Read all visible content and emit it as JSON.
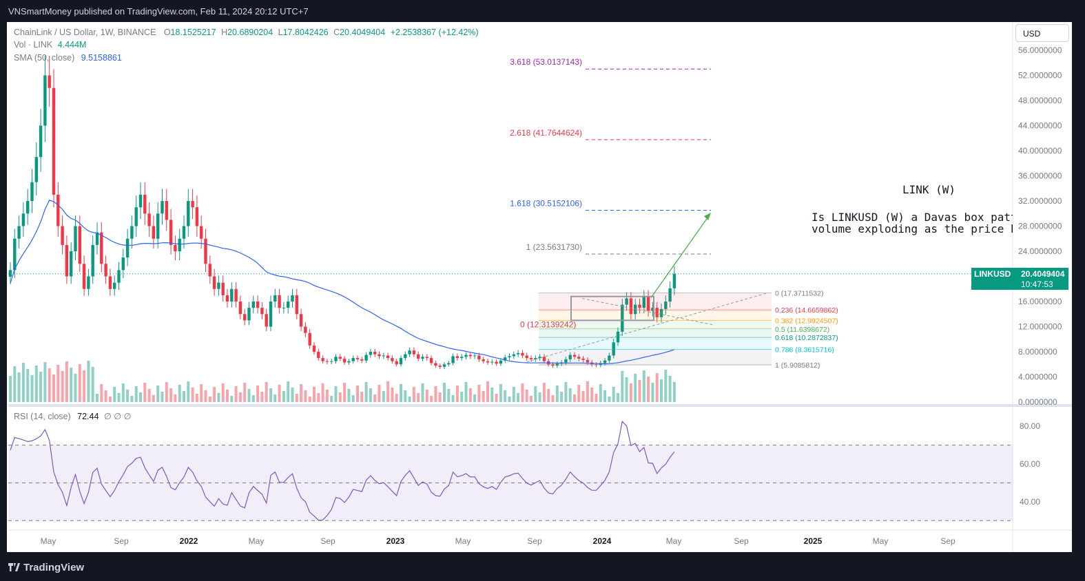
{
  "header": {
    "published": "VNSmartMoney published on TradingView.com, Feb 11, 2024 20:12 UTC+7"
  },
  "footer": {
    "brand": "TradingView"
  },
  "legend": {
    "title": "ChainLink / US Dollar, 1W, BINANCE",
    "open_label": "O",
    "open": "18.1525217",
    "high_label": "H",
    "high": "20.6890204",
    "low_label": "L",
    "low": "17.8042426",
    "close_label": "C",
    "close": "20.4049404",
    "change": "+2.2538367 (+12.42%)",
    "vol_label": "Vol · LINK",
    "vol": "4.444M",
    "sma_label": "SMA (50, close)",
    "sma": "9.5158861"
  },
  "rsi_legend": {
    "label": "RSI (14, close)",
    "value": "72.44",
    "extra": "∅ ∅ ∅"
  },
  "currency_button": "USD",
  "price_tag": {
    "symbol": "LINKUSD",
    "price": "20.4049404",
    "countdown": "10:47:53"
  },
  "colors": {
    "up": "#089981",
    "down": "#f23645",
    "sma": "#2962ff",
    "rsi": "#7e57c2",
    "bg": "#131722"
  },
  "annotations": {
    "title": "LINK (W)",
    "line1": "Is LINKUSD (W) a Davas box pattern",
    "line2": "volume exploding as the price breal"
  },
  "chart_data": [
    {
      "type": "candlestick",
      "symbol": "LINKUSD",
      "interval": "1W",
      "y_axis_labels": [
        "56.0000000",
        "52.0000000",
        "48.0000000",
        "44.0000000",
        "40.0000000",
        "36.0000000",
        "32.0000000",
        "28.0000000",
        "24.0000000",
        "20.0000000",
        "16.0000000",
        "12.0000000",
        "8.0000000",
        "4.0000000",
        "0.0000000"
      ],
      "ylim": [
        0,
        57.5
      ],
      "x_axis_labels": [
        "May",
        "Sep",
        "2022",
        "May",
        "Sep",
        "2023",
        "May",
        "Sep",
        "2024",
        "May",
        "Sep",
        "2025",
        "May",
        "Sep"
      ],
      "approx_weekly_closes_from": "2021-03",
      "approx_weekly_closes": [
        21,
        26,
        28,
        30,
        32,
        35,
        39,
        44,
        52,
        50,
        33,
        28,
        25,
        20,
        24,
        28,
        22,
        18,
        20,
        25,
        27,
        22,
        20,
        18,
        19,
        21,
        23,
        26,
        28,
        31,
        33,
        30,
        28,
        26,
        30,
        32,
        29,
        25,
        24,
        26,
        28,
        32,
        31,
        28,
        26,
        22,
        20,
        18,
        19,
        17,
        16,
        18,
        16,
        14,
        13,
        15,
        16,
        15,
        14,
        12,
        16,
        17,
        15,
        15,
        16,
        17,
        14,
        12,
        11,
        9,
        8,
        7,
        6.5,
        6.4,
        6.5,
        7.2,
        6.9,
        6.3,
        6.5,
        7.0,
        6.8,
        6.6,
        7.5,
        8.0,
        7.6,
        7.3,
        7.4,
        7.0,
        6.5,
        6.0,
        7.0,
        7.6,
        8.2,
        7.6,
        6.9,
        7.2,
        7.0,
        6.2,
        5.8,
        5.6,
        6.0,
        6.2,
        7.3,
        7.0,
        7.2,
        7.5,
        7.3,
        7.4,
        6.8,
        6.5,
        6.3,
        6.4,
        6.1,
        6.6,
        7.1,
        7.3,
        7.6,
        7.8,
        7.4,
        7.0,
        6.8,
        7.0,
        7.2,
        6.5,
        6.0,
        5.8,
        6.1,
        6.3,
        6.8,
        7.5,
        7.2,
        6.9,
        6.7,
        6.3,
        6.0,
        5.9,
        6.2,
        6.6,
        7.4,
        9.5,
        11.2,
        15.5,
        16.5,
        14.0,
        15.5,
        15.0,
        16.8,
        14.5,
        15.0,
        13.5,
        14.8,
        16.0,
        18.1,
        20.4
      ],
      "sma50_label": "SMA (50, close)",
      "last_price": 20.4049404
    },
    {
      "type": "fibonacci",
      "levels": [
        {
          "ratio": "3.618",
          "price": "53.0137143",
          "color": "#9c27b0"
        },
        {
          "ratio": "2.618",
          "price": "41.7644624",
          "color": "#f23645"
        },
        {
          "ratio": "1.618",
          "price": "30.5152106",
          "color": "#2962ff"
        },
        {
          "ratio": "1",
          "price": "23.5631730",
          "color": "#787b86"
        },
        {
          "ratio": "0",
          "price": "12.3139242",
          "color": "#f23645"
        }
      ]
    },
    {
      "type": "fibonacci_retracement",
      "levels": [
        {
          "ratio": "0",
          "price": "17.3711532",
          "color": "#787b86"
        },
        {
          "ratio": "0.236",
          "price": "14.6659862",
          "color": "#f23645"
        },
        {
          "ratio": "0.382",
          "price": "12.9924507",
          "color": "#ff9800"
        },
        {
          "ratio": "0.5",
          "price": "11.6398672",
          "color": "#4caf50"
        },
        {
          "ratio": "0.618",
          "price": "10.2872837",
          "color": "#089981"
        },
        {
          "ratio": "0.786",
          "price": "8.3615716",
          "color": "#00bcd4"
        },
        {
          "ratio": "1",
          "price": "5.9085812",
          "color": "#787b86"
        }
      ]
    },
    {
      "type": "line",
      "name": "RSI (14, close)",
      "y_axis_labels": [
        "80.00",
        "60.00",
        "40.00"
      ],
      "band": [
        30,
        70
      ],
      "ylim": [
        25,
        87
      ],
      "last_value": 72.44
    }
  ]
}
